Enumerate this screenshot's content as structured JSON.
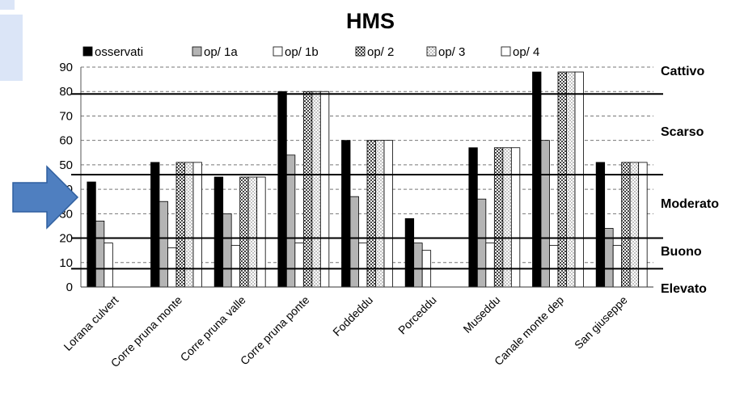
{
  "chart_data": {
    "type": "bar",
    "title": "HMS",
    "categories": [
      "Lorana culvert",
      "Corre pruna monte",
      "Corre pruna valle",
      "Corre pruna ponte",
      "Foddeddu",
      "Porceddu",
      "Museddu",
      "Canale monte dep",
      "San giuseppe"
    ],
    "series": [
      {
        "name": "osservati",
        "values": [
          43,
          51,
          45,
          80,
          60,
          28,
          57,
          88,
          51
        ]
      },
      {
        "name": "op/ 1a",
        "values": [
          27,
          35,
          30,
          54,
          37,
          18,
          36,
          60,
          24
        ]
      },
      {
        "name": "op/ 1b",
        "values": [
          18,
          16,
          17,
          18,
          18,
          15,
          18,
          17,
          17
        ]
      },
      {
        "name": "op/ 2",
        "values": [
          0,
          51,
          45,
          80,
          60,
          0,
          57,
          88,
          51
        ]
      },
      {
        "name": "op/ 3",
        "values": [
          0,
          51,
          45,
          80,
          60,
          0,
          57,
          88,
          51
        ]
      },
      {
        "name": "op/ 4",
        "values": [
          0,
          51,
          45,
          80,
          60,
          0,
          57,
          88,
          51
        ]
      }
    ],
    "ylim": [
      0,
      90
    ],
    "yticks": [
      "0",
      "10",
      "20",
      "30",
      "40",
      "50",
      "60",
      "70",
      "80",
      "90"
    ],
    "grid": true,
    "legend_position": "top",
    "thresholds": [
      {
        "label": "Cattivo",
        "value": 79
      },
      {
        "label": "Scarso",
        "value": 46
      },
      {
        "label": "Moderato",
        "value": 20
      },
      {
        "label": "Buono",
        "value": 7.5
      },
      {
        "label": "Elevato",
        "value": 0
      }
    ],
    "colors": {
      "osservati": "#000000",
      "op/ 1a": "#b4b4b4",
      "op/ 1b": "#ffffff",
      "op/ 2": "#8c8c8c",
      "op/ 3": "#ffffff",
      "op/ 4": "#ffffff",
      "arrow": "#4f7fc0",
      "deco": "#dbe5f7"
    },
    "icons": [
      "right-arrow-icon"
    ]
  }
}
